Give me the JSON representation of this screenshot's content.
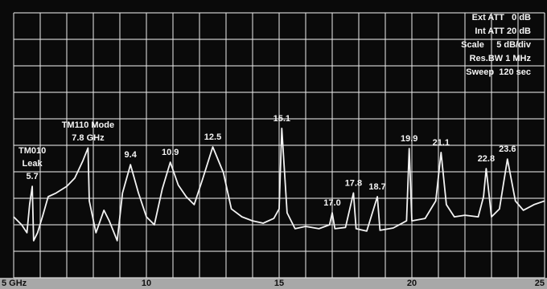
{
  "chart_data": {
    "type": "line",
    "color": "#f2f2f2",
    "xlim": [
      5,
      25
    ],
    "ylim": [
      0,
      10
    ],
    "xticks": [
      {
        "value": 5,
        "label": "5 GHz"
      },
      10,
      15,
      20,
      25
    ],
    "xgrid": [
      5,
      6,
      7,
      8,
      9,
      10,
      11,
      12,
      13,
      14,
      15,
      16,
      17,
      18,
      19,
      20,
      21,
      22,
      23,
      24,
      25
    ],
    "ygrid": [
      0,
      1,
      2,
      3,
      4,
      5,
      6,
      7,
      8,
      9,
      10
    ],
    "x": [
      5.0,
      5.3,
      5.5,
      5.6,
      5.7,
      5.75,
      5.9,
      6.1,
      6.3,
      6.6,
      7.0,
      7.3,
      7.6,
      7.8,
      7.85,
      8.1,
      8.4,
      8.6,
      8.9,
      9.1,
      9.4,
      9.7,
      10.0,
      10.3,
      10.6,
      10.9,
      11.2,
      11.5,
      11.8,
      12.1,
      12.5,
      12.9,
      13.2,
      13.6,
      14.0,
      14.4,
      14.8,
      15.0,
      15.1,
      15.3,
      15.6,
      16.0,
      16.5,
      16.9,
      17.0,
      17.1,
      17.5,
      17.8,
      17.9,
      18.3,
      18.7,
      18.8,
      19.3,
      19.8,
      19.9,
      20.0,
      20.5,
      20.9,
      21.1,
      21.3,
      21.6,
      22.0,
      22.5,
      22.7,
      22.8,
      23.0,
      23.3,
      23.6,
      23.9,
      24.2,
      24.6,
      25.0
    ],
    "values": [
      2.3,
      2.0,
      1.7,
      2.76,
      3.45,
      1.4,
      1.7,
      2.36,
      3.06,
      3.2,
      3.45,
      3.76,
      4.4,
      4.9,
      2.9,
      1.7,
      2.55,
      2.15,
      1.4,
      3.2,
      4.27,
      3.2,
      2.3,
      2.0,
      3.36,
      4.36,
      3.5,
      3.06,
      2.76,
      3.67,
      4.94,
      3.97,
      2.6,
      2.3,
      2.15,
      2.06,
      2.24,
      2.6,
      5.64,
      2.45,
      1.85,
      1.94,
      1.85,
      2.0,
      2.45,
      1.85,
      1.9,
      3.2,
      1.85,
      1.76,
      3.06,
      1.79,
      1.88,
      2.15,
      4.88,
      2.15,
      2.24,
      2.9,
      4.73,
      2.76,
      2.3,
      2.36,
      2.3,
      3.06,
      4.12,
      2.3,
      2.6,
      4.48,
      2.9,
      2.55,
      2.76,
      2.9
    ],
    "peaks": [
      {
        "value": 5.7,
        "label": "5.7",
        "caption": [
          "TM010",
          "Leak"
        ]
      },
      {
        "value": 7.8,
        "label": "7.8 GHz",
        "caption": [
          "TM110 Mode"
        ]
      },
      {
        "value": 9.4,
        "label": "9.4"
      },
      {
        "value": 10.9,
        "label": "10.9"
      },
      {
        "value": 12.5,
        "label": "12.5"
      },
      {
        "value": 15.1,
        "label": "15.1"
      },
      {
        "value": 17.0,
        "label": "17.0"
      },
      {
        "value": 17.8,
        "label": "17.8"
      },
      {
        "value": 18.7,
        "label": "18.7"
      },
      {
        "value": 19.9,
        "label": "19.9"
      },
      {
        "value": 21.1,
        "label": "21.1"
      },
      {
        "value": 22.8,
        "label": "22.8"
      },
      {
        "value": 23.6,
        "label": "23.6"
      }
    ],
    "settings_box": [
      "Ext ATT   0 dB",
      "Int ATT 20 dB",
      "Scale     5 dB/div",
      "Res.BW 1 MHz",
      "Sweep  120 sec"
    ]
  }
}
